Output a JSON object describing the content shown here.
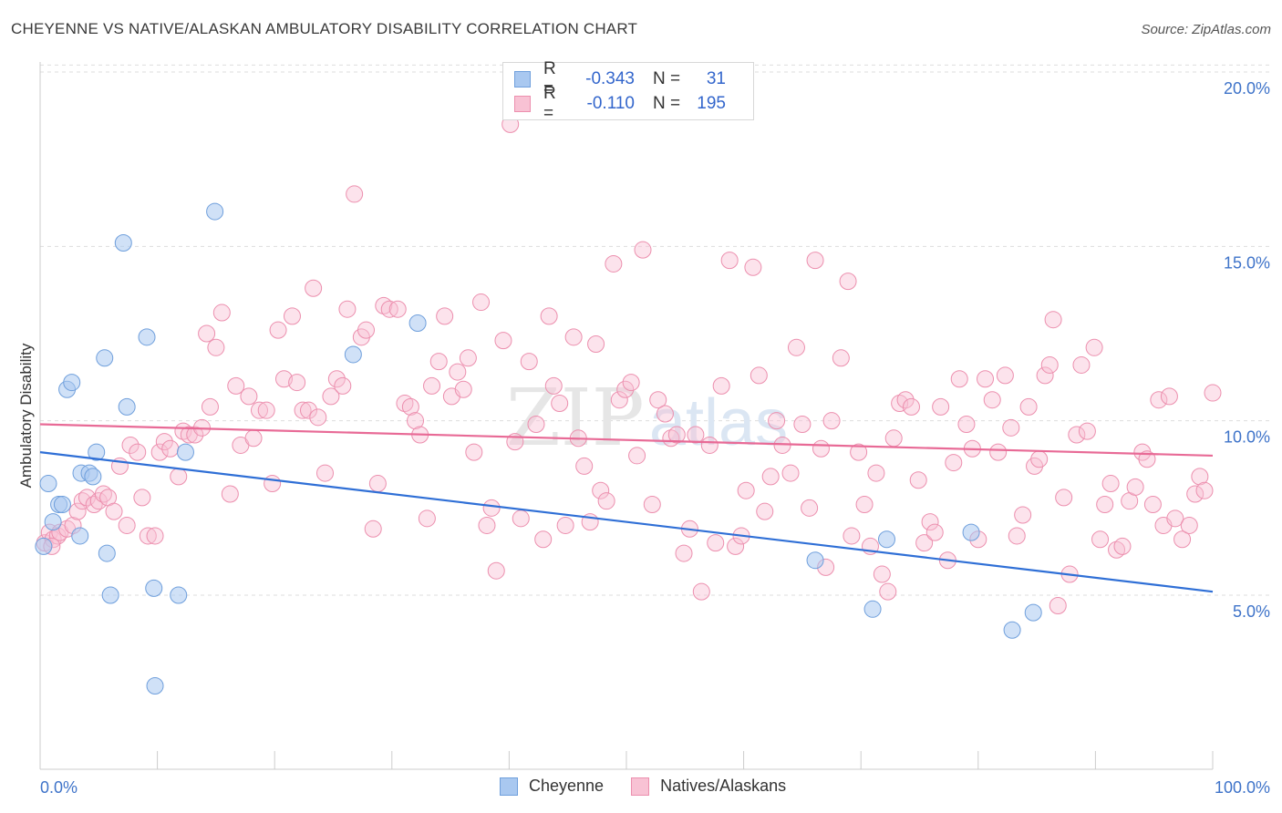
{
  "header": {
    "title": "CHEYENNE VS NATIVE/ALASKAN AMBULATORY DISABILITY CORRELATION CHART",
    "source": "Source: ZipAtlas.com"
  },
  "legend": {
    "rows": [
      {
        "r_label": "R =",
        "r_value": "-0.343",
        "n_label": "N =",
        "n_value": "31",
        "color": "#a9c8f0",
        "border": "#6f9fdc"
      },
      {
        "r_label": "R =",
        "r_value": "-0.110",
        "n_label": "N =",
        "n_value": "195",
        "color": "#f8c2d4",
        "border": "#ec8fae"
      }
    ]
  },
  "bottom_legend": {
    "items": [
      {
        "label": "Cheyenne",
        "color": "#a9c8f0",
        "border": "#6f9fdc"
      },
      {
        "label": "Natives/Alaskans",
        "color": "#f8c2d4",
        "border": "#ec8fae"
      }
    ]
  },
  "colors": {
    "blue_fill": "rgba(169,200,240,0.55)",
    "blue_stroke": "#6f9fdc",
    "blue_line": "#2f6fd6",
    "pink_fill": "rgba(248,194,212,0.45)",
    "pink_stroke": "#ec8fae",
    "pink_line": "#e86a96",
    "grid": "#dddddd",
    "tick_text": "#3e73c9"
  },
  "chart_data": {
    "type": "scatter",
    "title": "CHEYENNE VS NATIVE/ALASKAN AMBULATORY DISABILITY CORRELATION CHART",
    "xlabel": "",
    "ylabel": "Ambulatory Disability",
    "xlim": [
      0,
      100
    ],
    "ylim": [
      0,
      21
    ],
    "x_tick_labels": [
      "0.0%",
      "100.0%"
    ],
    "y_ticks": [
      5,
      10,
      15,
      20
    ],
    "y_tick_labels": [
      "5.0%",
      "10.0%",
      "15.0%",
      "20.0%"
    ],
    "watermark": "ZIPatlas",
    "series": [
      {
        "name": "Cheyenne",
        "r": -0.343,
        "n": 31,
        "trend": {
          "x": [
            0,
            100
          ],
          "y": [
            9.1,
            5.1
          ]
        },
        "points": [
          [
            0.3,
            6.4
          ],
          [
            0.7,
            8.2
          ],
          [
            1.1,
            7.1
          ],
          [
            1.6,
            7.6
          ],
          [
            1.9,
            7.6
          ],
          [
            2.3,
            10.9
          ],
          [
            2.7,
            11.1
          ],
          [
            3.4,
            6.7
          ],
          [
            3.5,
            8.5
          ],
          [
            4.2,
            8.5
          ],
          [
            4.5,
            8.4
          ],
          [
            4.8,
            9.1
          ],
          [
            5.5,
            11.8
          ],
          [
            5.7,
            6.2
          ],
          [
            6.0,
            5.0
          ],
          [
            7.1,
            15.1
          ],
          [
            7.4,
            10.4
          ],
          [
            9.1,
            12.4
          ],
          [
            9.7,
            5.2
          ],
          [
            9.8,
            2.4
          ],
          [
            11.8,
            5.0
          ],
          [
            12.4,
            9.1
          ],
          [
            14.9,
            16.0
          ],
          [
            26.7,
            11.9
          ],
          [
            32.2,
            12.8
          ],
          [
            66.1,
            6.0
          ],
          [
            71.0,
            4.6
          ],
          [
            72.2,
            6.6
          ],
          [
            79.4,
            6.8
          ],
          [
            82.9,
            4.0
          ],
          [
            84.7,
            4.5
          ]
        ]
      },
      {
        "name": "Natives/Alaskans",
        "r": -0.11,
        "n": 195,
        "trend": {
          "x": [
            0,
            100
          ],
          "y": [
            9.9,
            9.0
          ]
        },
        "points": [
          [
            0.4,
            6.5
          ],
          [
            0.8,
            6.8
          ],
          [
            1.1,
            6.6
          ],
          [
            1.5,
            6.7
          ],
          [
            1.7,
            6.8
          ],
          [
            2.3,
            6.9
          ],
          [
            2.8,
            7.0
          ],
          [
            3.2,
            7.4
          ],
          [
            3.6,
            7.7
          ],
          [
            4.0,
            7.8
          ],
          [
            4.6,
            7.6
          ],
          [
            5.0,
            7.7
          ],
          [
            5.4,
            7.9
          ],
          [
            5.8,
            7.8
          ],
          [
            6.3,
            7.4
          ],
          [
            6.8,
            8.7
          ],
          [
            7.4,
            7.0
          ],
          [
            7.7,
            9.3
          ],
          [
            8.3,
            9.1
          ],
          [
            8.7,
            7.8
          ],
          [
            9.2,
            6.7
          ],
          [
            9.8,
            6.7
          ],
          [
            10.2,
            9.1
          ],
          [
            10.6,
            9.4
          ],
          [
            11.1,
            9.2
          ],
          [
            11.8,
            8.4
          ],
          [
            12.2,
            9.7
          ],
          [
            12.7,
            9.6
          ],
          [
            13.2,
            9.6
          ],
          [
            13.8,
            9.8
          ],
          [
            14.2,
            12.5
          ],
          [
            14.5,
            10.4
          ],
          [
            15.0,
            12.1
          ],
          [
            15.5,
            13.1
          ],
          [
            16.2,
            7.9
          ],
          [
            16.7,
            11.0
          ],
          [
            17.1,
            9.3
          ],
          [
            17.8,
            10.7
          ],
          [
            18.2,
            9.5
          ],
          [
            18.7,
            10.3
          ],
          [
            19.3,
            10.3
          ],
          [
            19.8,
            8.2
          ],
          [
            20.3,
            12.6
          ],
          [
            20.8,
            11.2
          ],
          [
            21.5,
            13.0
          ],
          [
            21.9,
            11.1
          ],
          [
            22.4,
            10.3
          ],
          [
            22.9,
            10.3
          ],
          [
            23.3,
            13.8
          ],
          [
            23.7,
            10.1
          ],
          [
            24.3,
            8.5
          ],
          [
            24.8,
            10.7
          ],
          [
            25.3,
            11.2
          ],
          [
            25.8,
            11.0
          ],
          [
            26.2,
            13.2
          ],
          [
            26.8,
            16.5
          ],
          [
            27.4,
            12.4
          ],
          [
            27.8,
            12.6
          ],
          [
            28.4,
            6.9
          ],
          [
            28.8,
            8.2
          ],
          [
            29.3,
            13.3
          ],
          [
            29.8,
            13.2
          ],
          [
            30.5,
            13.2
          ],
          [
            31.1,
            10.5
          ],
          [
            31.6,
            10.4
          ],
          [
            32.0,
            10.0
          ],
          [
            32.4,
            9.6
          ],
          [
            33.0,
            7.2
          ],
          [
            33.4,
            11.0
          ],
          [
            34.0,
            11.7
          ],
          [
            34.5,
            13.0
          ],
          [
            35.1,
            10.7
          ],
          [
            35.6,
            11.4
          ],
          [
            36.1,
            10.9
          ],
          [
            36.5,
            11.8
          ],
          [
            37.0,
            9.1
          ],
          [
            37.6,
            13.4
          ],
          [
            38.1,
            7.0
          ],
          [
            38.5,
            7.5
          ],
          [
            38.9,
            5.7
          ],
          [
            39.5,
            12.3
          ],
          [
            40.1,
            18.5
          ],
          [
            40.5,
            9.4
          ],
          [
            41.0,
            7.2
          ],
          [
            41.7,
            11.7
          ],
          [
            42.3,
            9.9
          ],
          [
            42.9,
            6.6
          ],
          [
            43.4,
            13.0
          ],
          [
            43.8,
            11.0
          ],
          [
            44.3,
            10.5
          ],
          [
            44.8,
            7.0
          ],
          [
            45.5,
            12.4
          ],
          [
            45.9,
            9.5
          ],
          [
            46.4,
            8.7
          ],
          [
            46.9,
            7.1
          ],
          [
            47.4,
            12.2
          ],
          [
            47.8,
            8.0
          ],
          [
            48.3,
            7.7
          ],
          [
            48.9,
            14.5
          ],
          [
            49.4,
            10.6
          ],
          [
            49.9,
            10.9
          ],
          [
            50.4,
            11.1
          ],
          [
            50.9,
            9.0
          ],
          [
            51.4,
            14.9
          ],
          [
            52.2,
            7.6
          ],
          [
            52.7,
            10.6
          ],
          [
            53.3,
            10.2
          ],
          [
            53.8,
            9.5
          ],
          [
            54.3,
            9.6
          ],
          [
            54.9,
            6.2
          ],
          [
            55.4,
            6.9
          ],
          [
            55.9,
            9.6
          ],
          [
            56.4,
            5.1
          ],
          [
            57.1,
            9.3
          ],
          [
            57.6,
            6.5
          ],
          [
            58.1,
            11.0
          ],
          [
            58.8,
            14.6
          ],
          [
            59.3,
            6.4
          ],
          [
            59.8,
            6.7
          ],
          [
            60.2,
            8.0
          ],
          [
            60.8,
            14.4
          ],
          [
            61.3,
            11.3
          ],
          [
            61.8,
            7.4
          ],
          [
            62.3,
            8.4
          ],
          [
            62.8,
            10.0
          ],
          [
            63.3,
            9.3
          ],
          [
            64.0,
            8.5
          ],
          [
            64.5,
            12.1
          ],
          [
            65.0,
            9.9
          ],
          [
            65.6,
            7.5
          ],
          [
            66.1,
            14.6
          ],
          [
            66.6,
            9.2
          ],
          [
            67.0,
            5.8
          ],
          [
            67.5,
            10.0
          ],
          [
            68.3,
            11.8
          ],
          [
            68.9,
            14.0
          ],
          [
            69.2,
            6.7
          ],
          [
            69.8,
            9.1
          ],
          [
            70.3,
            7.6
          ],
          [
            70.8,
            6.4
          ],
          [
            71.3,
            8.5
          ],
          [
            71.8,
            5.6
          ],
          [
            72.3,
            5.1
          ],
          [
            72.8,
            9.5
          ],
          [
            73.3,
            10.5
          ],
          [
            73.8,
            10.6
          ],
          [
            74.3,
            10.4
          ],
          [
            74.9,
            8.3
          ],
          [
            75.4,
            6.5
          ],
          [
            75.9,
            7.1
          ],
          [
            76.3,
            6.8
          ],
          [
            76.8,
            10.4
          ],
          [
            77.4,
            6.0
          ],
          [
            77.9,
            8.8
          ],
          [
            78.4,
            11.2
          ],
          [
            79.0,
            9.9
          ],
          [
            79.5,
            9.2
          ],
          [
            80.0,
            6.6
          ],
          [
            80.6,
            11.2
          ],
          [
            81.2,
            10.6
          ],
          [
            81.7,
            9.1
          ],
          [
            82.3,
            11.3
          ],
          [
            82.8,
            9.8
          ],
          [
            83.3,
            6.7
          ],
          [
            83.8,
            7.3
          ],
          [
            84.3,
            10.4
          ],
          [
            84.8,
            8.7
          ],
          [
            85.2,
            8.9
          ],
          [
            85.7,
            11.3
          ],
          [
            86.1,
            11.6
          ],
          [
            86.4,
            12.9
          ],
          [
            86.8,
            4.7
          ],
          [
            87.3,
            7.8
          ],
          [
            87.8,
            5.6
          ],
          [
            88.4,
            9.6
          ],
          [
            88.8,
            11.6
          ],
          [
            89.3,
            9.7
          ],
          [
            89.9,
            12.1
          ],
          [
            90.4,
            6.6
          ],
          [
            90.8,
            7.6
          ],
          [
            91.3,
            8.2
          ],
          [
            91.8,
            6.3
          ],
          [
            92.3,
            6.4
          ],
          [
            92.9,
            7.7
          ],
          [
            93.4,
            8.1
          ],
          [
            94.0,
            9.1
          ],
          [
            94.4,
            8.9
          ],
          [
            94.9,
            7.6
          ],
          [
            95.4,
            10.6
          ],
          [
            95.8,
            7.0
          ],
          [
            96.3,
            10.7
          ],
          [
            96.8,
            7.2
          ],
          [
            97.4,
            6.6
          ],
          [
            98.0,
            7.0
          ],
          [
            98.5,
            7.9
          ],
          [
            98.9,
            8.4
          ],
          [
            99.3,
            8.0
          ],
          [
            100.0,
            10.8
          ],
          [
            1.0,
            6.4
          ]
        ]
      }
    ]
  }
}
